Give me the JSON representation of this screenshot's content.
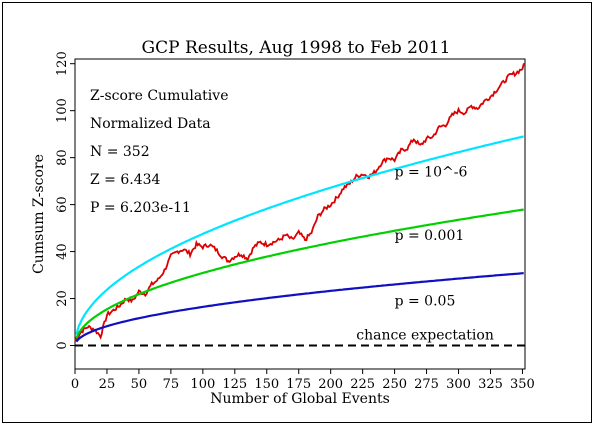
{
  "chart_data": {
    "type": "line",
    "title": "GCP Results, Aug 1998 to Feb 2011",
    "xlabel": "Number of Global Events",
    "ylabel": "Cumsum Z-score",
    "xlim": [
      0,
      352
    ],
    "ylim": [
      -10,
      122
    ],
    "x_ticks": [
      "0",
      "25",
      "50",
      "75",
      "100",
      "125",
      "150",
      "175",
      "200",
      "225",
      "250",
      "275",
      "300",
      "325",
      "350"
    ],
    "y_ticks": [
      "0",
      "20",
      "40",
      "60",
      "80",
      "100",
      "120"
    ],
    "grid": false,
    "legend": "none",
    "stats": [
      "Z-score Cumulative",
      "Normalized Data",
      "N = 352",
      "Z = 6.434",
      "P = 6.203e-11"
    ],
    "series": [
      {
        "name": "Z-score Cumulative",
        "color": "#dd0000",
        "x": [
          0,
          5,
          10,
          15,
          20,
          25,
          30,
          35,
          40,
          45,
          50,
          55,
          60,
          65,
          70,
          75,
          80,
          85,
          90,
          95,
          100,
          105,
          110,
          115,
          120,
          125,
          130,
          135,
          140,
          145,
          150,
          155,
          160,
          165,
          170,
          175,
          180,
          185,
          190,
          195,
          200,
          205,
          210,
          215,
          220,
          225,
          230,
          235,
          240,
          245,
          250,
          255,
          260,
          265,
          270,
          275,
          280,
          285,
          290,
          295,
          300,
          305,
          310,
          315,
          320,
          325,
          330,
          335,
          340,
          345,
          350,
          352
        ],
        "y": [
          2,
          6,
          8,
          7,
          4,
          13,
          15,
          17,
          20,
          19,
          23,
          22,
          26,
          28,
          32,
          38,
          40,
          41,
          39,
          43,
          42,
          43,
          41,
          38,
          36,
          38,
          39,
          37,
          42,
          44,
          43,
          44,
          45,
          47,
          45,
          48,
          45,
          48,
          55,
          58,
          60,
          63,
          67,
          69,
          72,
          73,
          72,
          74,
          78,
          80,
          79,
          83,
          84,
          88,
          85,
          88,
          89,
          93,
          94,
          98,
          100,
          99,
          102,
          101,
          104,
          106,
          109,
          112,
          115,
          116,
          118,
          120
        ]
      },
      {
        "name": "p = 10^-6",
        "label": "p = 10^-6",
        "color": "#00e5ff",
        "formula_coeff": 4.753,
        "x_label_at": 250,
        "y_label_at": 72
      },
      {
        "name": "p = 0.001",
        "label": "p = 0.001",
        "color": "#00d000",
        "formula_coeff": 3.09,
        "x_label_at": 250,
        "y_label_at": 45
      },
      {
        "name": "p = 0.05",
        "label": "p = 0.05",
        "color": "#1010c0",
        "formula_coeff": 1.645,
        "x_label_at": 250,
        "y_label_at": 17
      },
      {
        "name": "chance expectation",
        "label": "chance expectation",
        "color": "#000000",
        "dashed": true,
        "constant": 0
      }
    ]
  }
}
